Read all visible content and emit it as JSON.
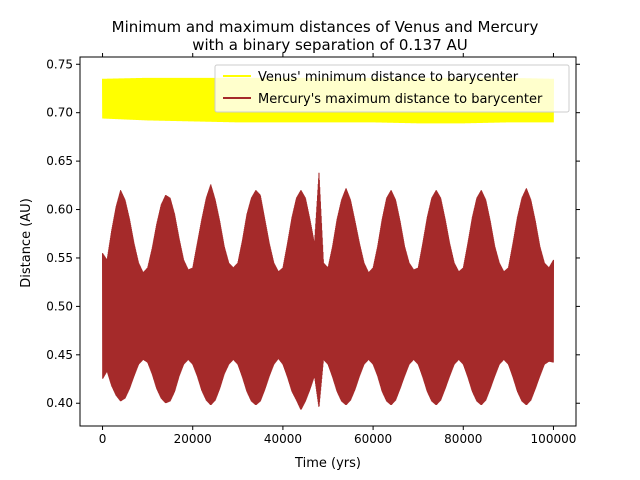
{
  "chart_data": {
    "type": "area",
    "title_line1": "Minimum and maximum distances of Venus and Mercury",
    "title_line2": "with a binary separation of 0.137 AU",
    "xlabel": "Time (yrs)",
    "ylabel": "Distance (AU)",
    "xlim": [
      -5000,
      105000
    ],
    "ylim": [
      0.3765,
      0.7575
    ],
    "x_ticks": [
      0,
      20000,
      40000,
      60000,
      80000,
      100000
    ],
    "x_tick_labels": [
      "0",
      "20000",
      "40000",
      "60000",
      "80000",
      "100000"
    ],
    "y_ticks": [
      0.4,
      0.45,
      0.5,
      0.55,
      0.6,
      0.65,
      0.7,
      0.75
    ],
    "y_tick_labels": [
      "0.40",
      "0.45",
      "0.50",
      "0.55",
      "0.60",
      "0.65",
      "0.70",
      "0.75"
    ],
    "grid": false,
    "legend_position": "top-right",
    "series": [
      {
        "name": "Venus' minimum distance to barycenter",
        "color": "#ffff00",
        "x": [
          0,
          10000,
          20000,
          30000,
          40000,
          50000,
          60000,
          70000,
          80000,
          90000,
          100000
        ],
        "min": [
          0.694,
          0.692,
          0.691,
          0.69,
          0.69,
          0.69,
          0.69,
          0.689,
          0.689,
          0.69,
          0.69
        ],
        "max": [
          0.735,
          0.736,
          0.736,
          0.736,
          0.736,
          0.736,
          0.736,
          0.736,
          0.736,
          0.736,
          0.735
        ]
      },
      {
        "name": "Mercury's maximum distance to barycenter",
        "color": "#a52a2a",
        "x": [
          0,
          1000,
          2000,
          3000,
          4000,
          5000,
          6000,
          7000,
          8000,
          9000,
          10000,
          11000,
          12000,
          13000,
          14000,
          15000,
          16000,
          17000,
          18000,
          19000,
          20000,
          21000,
          22000,
          23000,
          24000,
          25000,
          26000,
          27000,
          28000,
          29000,
          30000,
          31000,
          32000,
          33000,
          34000,
          35000,
          36000,
          37000,
          38000,
          39000,
          40000,
          41000,
          42000,
          43000,
          44000,
          45000,
          46000,
          47000,
          48000,
          49000,
          50000,
          51000,
          52000,
          53000,
          54000,
          55000,
          56000,
          57000,
          58000,
          59000,
          60000,
          61000,
          62000,
          63000,
          64000,
          65000,
          66000,
          67000,
          68000,
          69000,
          70000,
          71000,
          72000,
          73000,
          74000,
          75000,
          76000,
          77000,
          78000,
          79000,
          80000,
          81000,
          82000,
          83000,
          84000,
          85000,
          86000,
          87000,
          88000,
          89000,
          90000,
          91000,
          92000,
          93000,
          94000,
          95000,
          96000,
          97000,
          98000,
          99000,
          100000
        ],
        "max": [
          0.555,
          0.548,
          0.578,
          0.603,
          0.62,
          0.61,
          0.59,
          0.565,
          0.545,
          0.535,
          0.54,
          0.56,
          0.585,
          0.605,
          0.615,
          0.612,
          0.595,
          0.57,
          0.548,
          0.538,
          0.54,
          0.565,
          0.59,
          0.612,
          0.626,
          0.61,
          0.588,
          0.562,
          0.545,
          0.54,
          0.545,
          0.568,
          0.595,
          0.612,
          0.62,
          0.615,
          0.59,
          0.565,
          0.545,
          0.536,
          0.54,
          0.565,
          0.592,
          0.612,
          0.62,
          0.612,
          0.59,
          0.565,
          0.638,
          0.545,
          0.54,
          0.562,
          0.59,
          0.61,
          0.622,
          0.61,
          0.588,
          0.565,
          0.545,
          0.535,
          0.54,
          0.562,
          0.59,
          0.612,
          0.62,
          0.61,
          0.588,
          0.562,
          0.545,
          0.538,
          0.54,
          0.565,
          0.592,
          0.612,
          0.62,
          0.612,
          0.59,
          0.565,
          0.545,
          0.536,
          0.54,
          0.565,
          0.592,
          0.612,
          0.62,
          0.61,
          0.588,
          0.562,
          0.545,
          0.536,
          0.54,
          0.565,
          0.592,
          0.612,
          0.622,
          0.61,
          0.588,
          0.562,
          0.545,
          0.54,
          0.548
        ],
        "min": [
          0.425,
          0.433,
          0.418,
          0.408,
          0.402,
          0.405,
          0.415,
          0.428,
          0.44,
          0.445,
          0.442,
          0.43,
          0.415,
          0.405,
          0.4,
          0.402,
          0.412,
          0.428,
          0.44,
          0.445,
          0.44,
          0.428,
          0.413,
          0.403,
          0.398,
          0.403,
          0.415,
          0.43,
          0.44,
          0.445,
          0.44,
          0.427,
          0.412,
          0.402,
          0.398,
          0.402,
          0.414,
          0.428,
          0.44,
          0.446,
          0.44,
          0.427,
          0.412,
          0.403,
          0.393,
          0.402,
          0.414,
          0.428,
          0.395,
          0.445,
          0.44,
          0.427,
          0.412,
          0.402,
          0.398,
          0.403,
          0.414,
          0.428,
          0.44,
          0.445,
          0.44,
          0.428,
          0.412,
          0.402,
          0.398,
          0.403,
          0.415,
          0.428,
          0.44,
          0.445,
          0.44,
          0.427,
          0.412,
          0.402,
          0.398,
          0.403,
          0.415,
          0.428,
          0.44,
          0.445,
          0.44,
          0.427,
          0.412,
          0.402,
          0.398,
          0.403,
          0.415,
          0.428,
          0.44,
          0.445,
          0.44,
          0.427,
          0.412,
          0.402,
          0.398,
          0.403,
          0.415,
          0.428,
          0.44,
          0.443,
          0.442
        ]
      }
    ]
  }
}
